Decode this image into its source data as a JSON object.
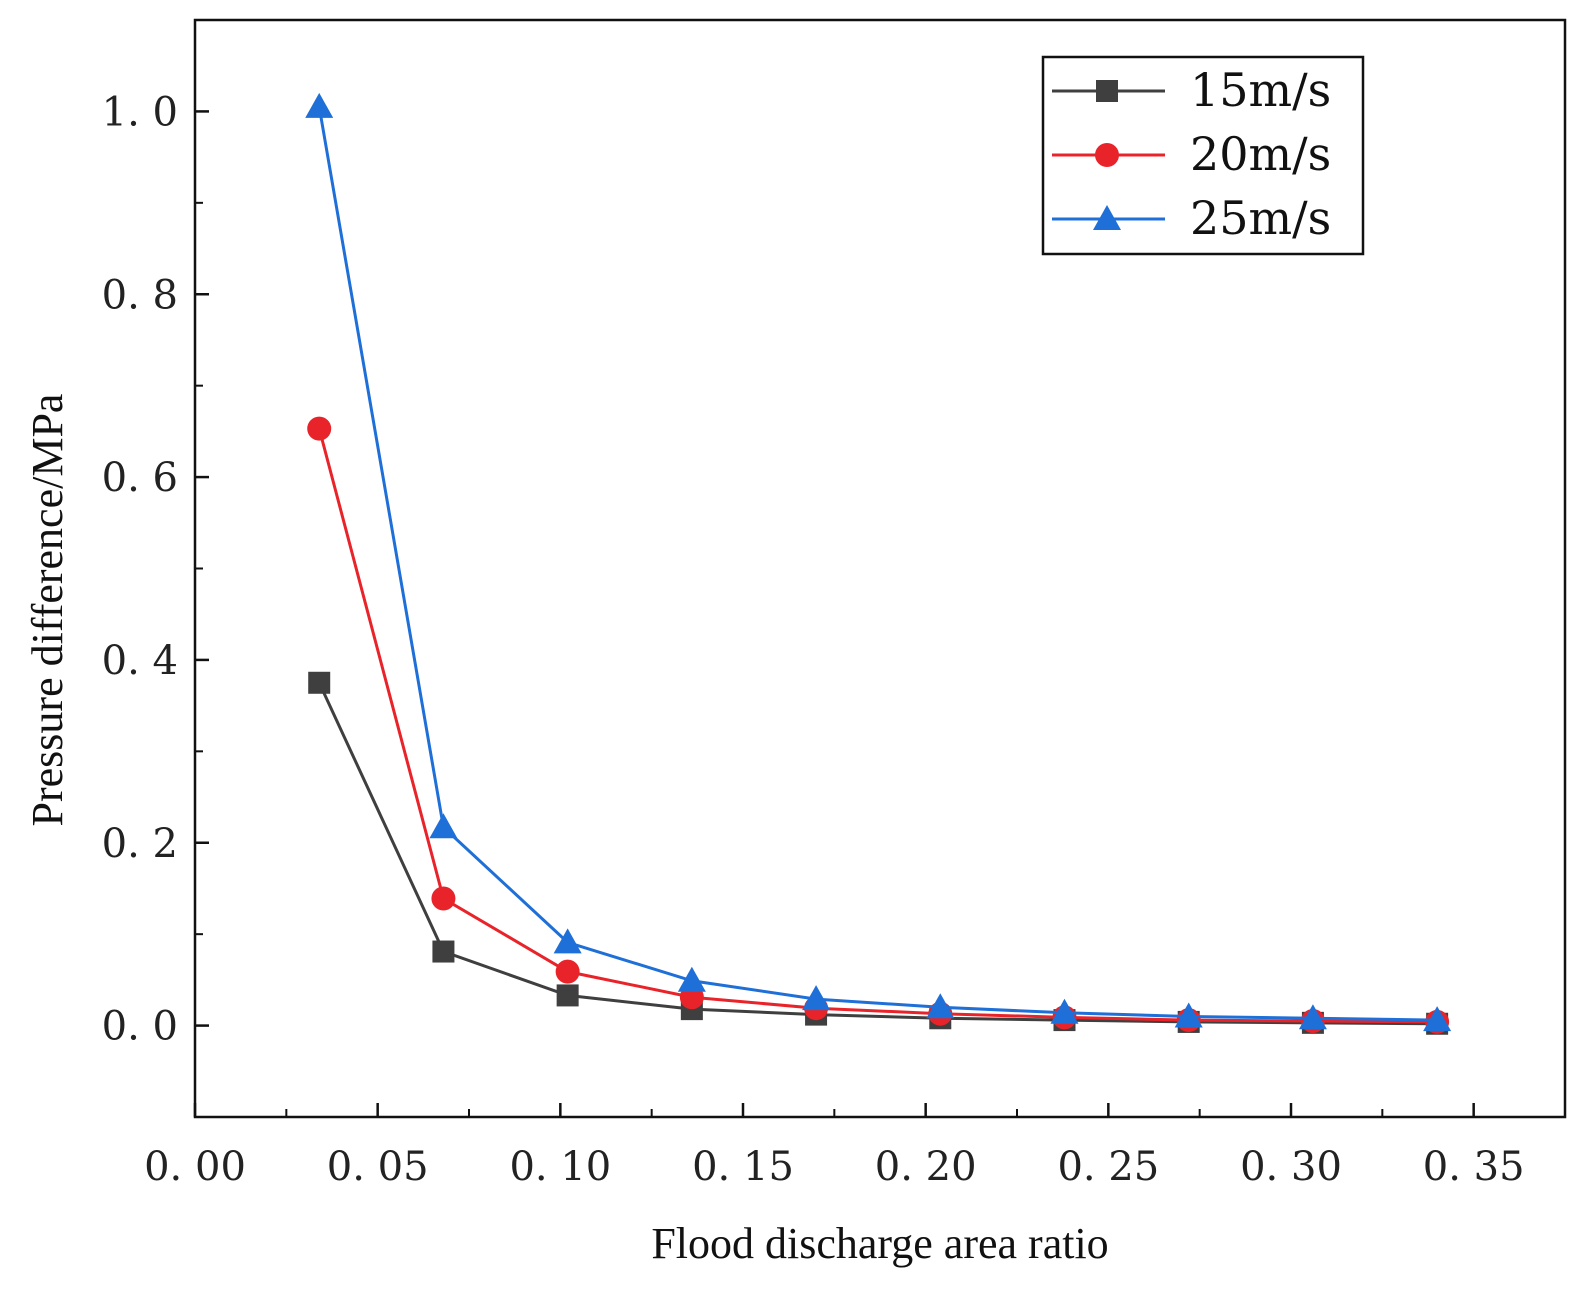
{
  "chart_data": {
    "type": "line",
    "xlabel": "Flood discharge area ratio",
    "ylabel": "Pressure difference/MPa",
    "xlim": [
      0.0,
      0.375
    ],
    "ylim": [
      -0.1,
      1.1
    ],
    "x_ticks": [
      0.0,
      0.05,
      0.1,
      0.15,
      0.2,
      0.25,
      0.3,
      0.35
    ],
    "x_tick_labels": [
      "0. 00",
      "0. 05",
      "0. 10",
      "0. 15",
      "0. 20",
      "0. 25",
      "0. 30",
      "0. 35"
    ],
    "y_ticks": [
      0.0,
      0.2,
      0.4,
      0.6,
      0.8,
      1.0
    ],
    "y_tick_labels": [
      "0. 0",
      "0. 2",
      "0. 4",
      "0. 6",
      "0. 8",
      "1. 0"
    ],
    "legend_position": "top-right",
    "x": [
      0.034,
      0.068,
      0.102,
      0.136,
      0.17,
      0.204,
      0.238,
      0.272,
      0.306,
      0.34
    ],
    "series": [
      {
        "name": "15m/s",
        "marker": "square",
        "color": "#3f3f3f",
        "values": [
          0.375,
          0.081,
          0.033,
          0.018,
          0.012,
          0.008,
          0.006,
          0.004,
          0.003,
          0.002
        ]
      },
      {
        "name": "20m/s",
        "marker": "circle",
        "color": "#e8242a",
        "values": [
          0.653,
          0.139,
          0.059,
          0.031,
          0.019,
          0.013,
          0.009,
          0.006,
          0.005,
          0.004
        ]
      },
      {
        "name": "25m/s",
        "marker": "triangle",
        "color": "#1f6fd8",
        "values": [
          1.005,
          0.217,
          0.091,
          0.049,
          0.029,
          0.02,
          0.014,
          0.01,
          0.008,
          0.006
        ]
      }
    ]
  }
}
